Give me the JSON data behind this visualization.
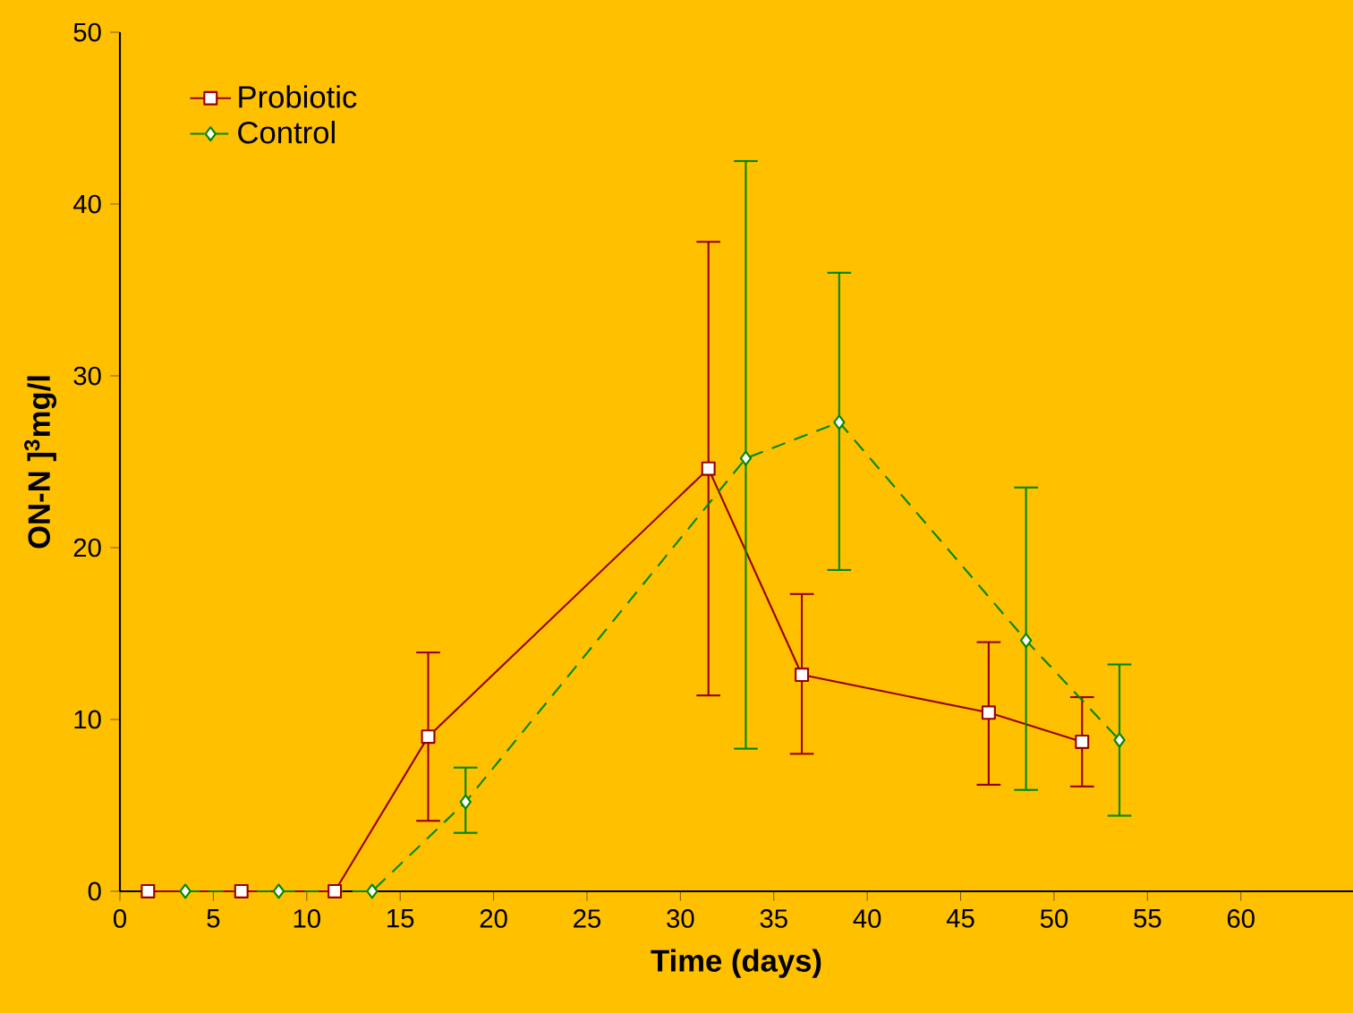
{
  "chart_data": {
    "type": "line",
    "xlabel": "Time (days)",
    "ylabel": "ON-N ]$^{3}$mg/l",
    "xlim": [
      0,
      66
    ],
    "ylim": [
      0,
      50
    ],
    "xticks": [
      0,
      5,
      10,
      15,
      20,
      25,
      30,
      35,
      40,
      45,
      50,
      55,
      60
    ],
    "yticks": [
      0,
      10,
      20,
      30,
      40,
      50
    ],
    "legend": "top left",
    "series": [
      {
        "name": "Probiotic",
        "color": "#990000",
        "marker": "square",
        "line_style": "solid",
        "x": [
          1.5,
          6.5,
          11.5,
          16.5,
          31.5,
          36.5,
          46.5,
          51.5
        ],
        "values": [
          0,
          0,
          0,
          9.0,
          24.6,
          12.6,
          10.4,
          8.7
        ],
        "errors": [
          null,
          null,
          null,
          [
            4.1,
            13.9
          ],
          [
            11.4,
            37.8
          ],
          [
            8.0,
            17.3
          ],
          [
            6.2,
            14.5
          ],
          [
            6.1,
            11.3
          ]
        ]
      },
      {
        "name": "Control",
        "color": "#008800",
        "marker": "diamond",
        "line_style": "dashed",
        "x": [
          3.5,
          8.5,
          13.5,
          18.5,
          33.5,
          38.5,
          48.5,
          53.5
        ],
        "values": [
          0,
          0,
          0,
          5.2,
          25.2,
          27.3,
          14.6,
          8.8
        ],
        "errors": [
          null,
          null,
          null,
          [
            3.4,
            7.2
          ],
          [
            8.3,
            42.5
          ],
          [
            18.7,
            36.0
          ],
          [
            5.9,
            23.5
          ],
          [
            4.4,
            13.2
          ]
        ]
      }
    ]
  }
}
